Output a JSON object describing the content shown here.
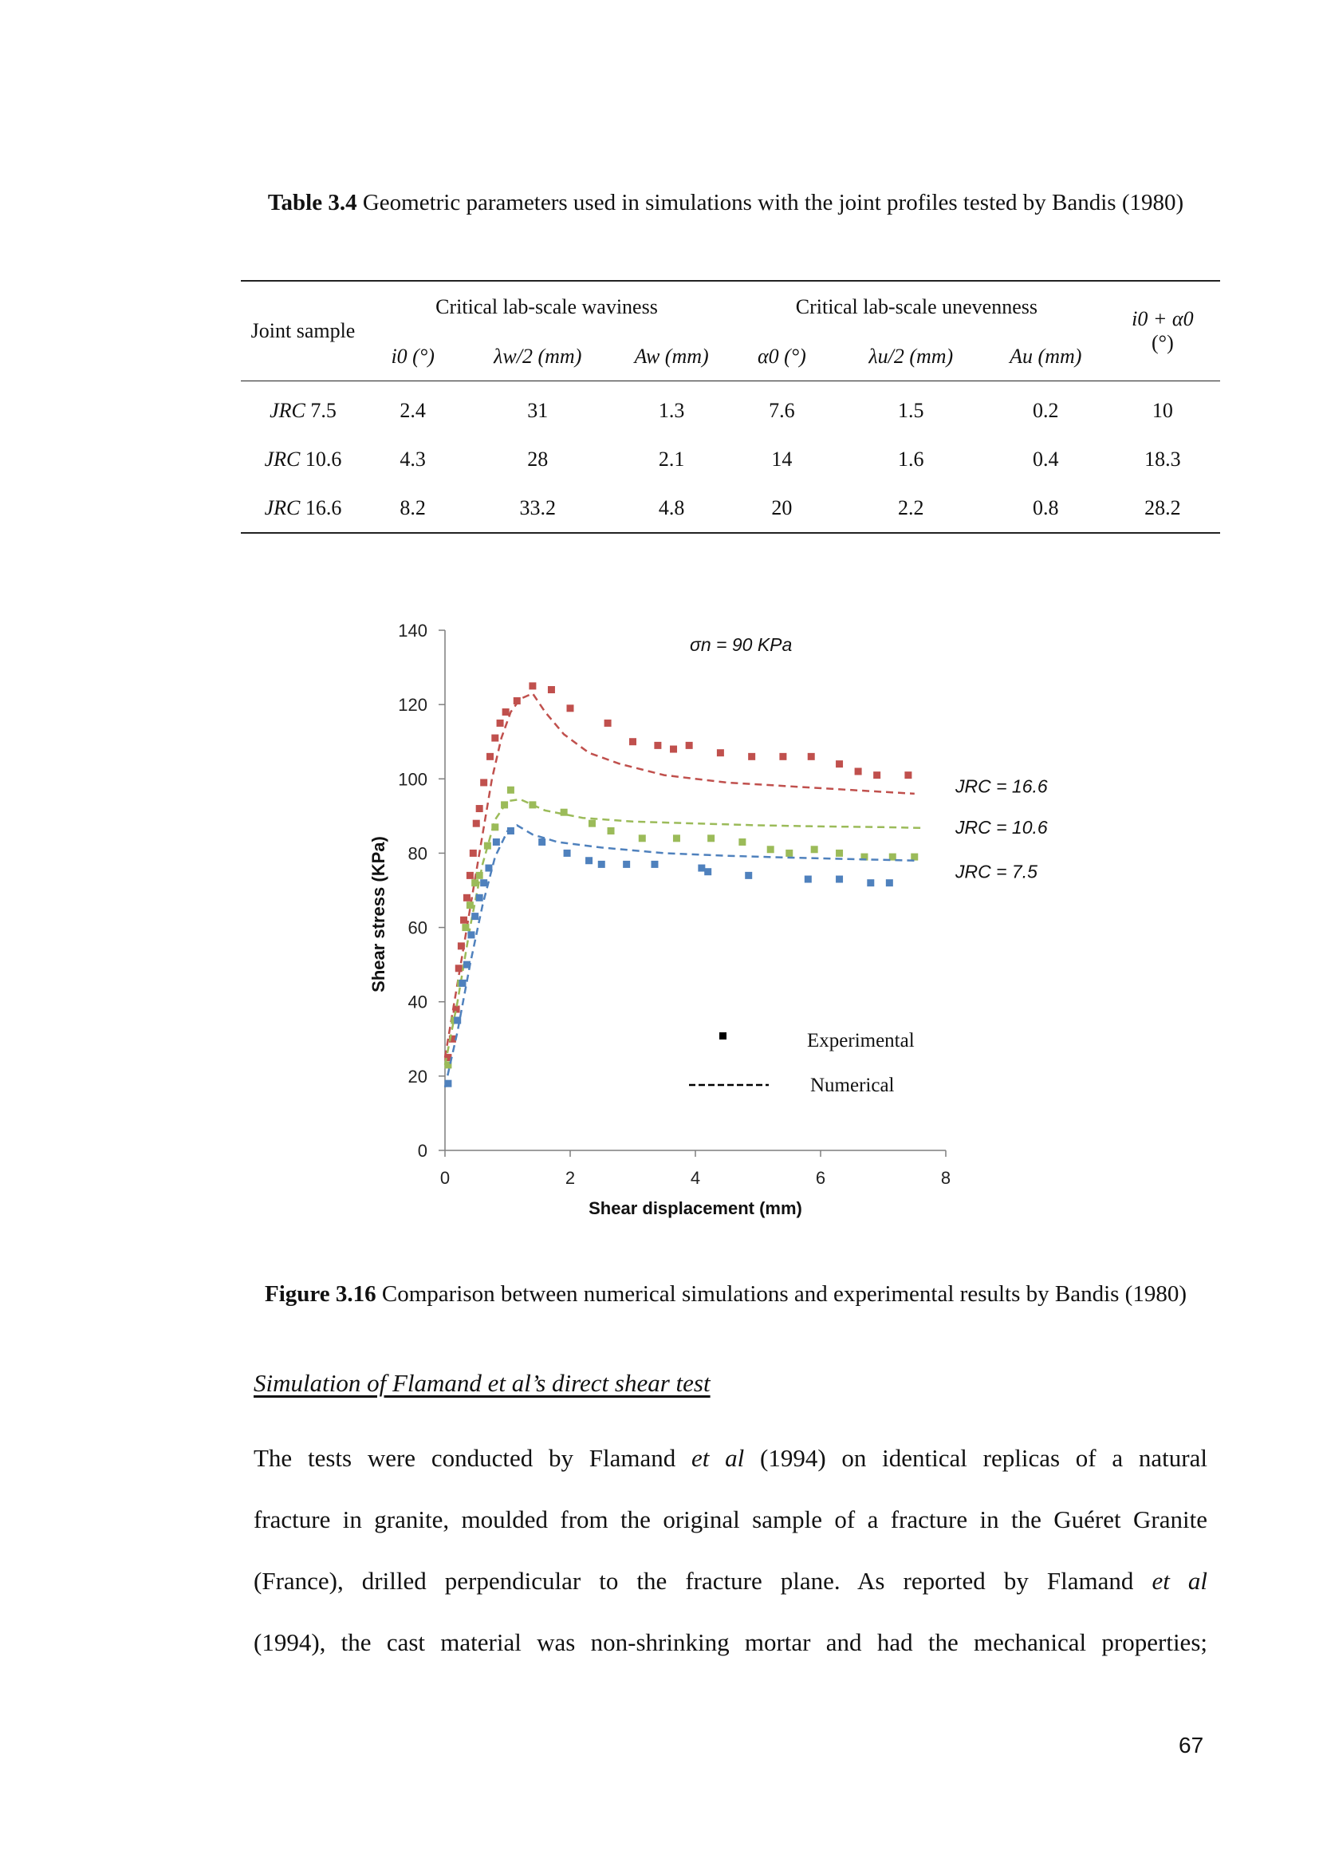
{
  "table": {
    "caption_label": "Table 3.4",
    "caption_text": "Geometric parameters used in simulations with the joint profiles tested by Bandis (1980)",
    "header_joint": "Joint sample",
    "header_waviness": "Critical lab-scale waviness",
    "header_unevenness": "Critical lab-scale unevenness",
    "header_sum_top": "i0 + α0",
    "header_sum_unit": "(°)",
    "sub_i0": "i0 (°)",
    "sub_lw": "λw/2 (mm)",
    "sub_aw": "Aw (mm)",
    "sub_a0": "α0 (°)",
    "sub_lu": "λu/2 (mm)",
    "sub_au": "Au (mm)",
    "rows": [
      {
        "jrc_label": "JRC",
        "jrc_value": "7.5",
        "i0": "2.4",
        "lw": "31",
        "aw": "1.3",
        "a0": "7.6",
        "lu": "1.5",
        "au": "0.2",
        "sum": "10"
      },
      {
        "jrc_label": "JRC",
        "jrc_value": "10.6",
        "i0": "4.3",
        "lw": "28",
        "aw": "2.1",
        "a0": "14",
        "lu": "1.6",
        "au": "0.4",
        "sum": "18.3"
      },
      {
        "jrc_label": "JRC",
        "jrc_value": "16.6",
        "i0": "8.2",
        "lw": "33.2",
        "aw": "4.8",
        "a0": "20",
        "lu": "2.2",
        "au": "0.8",
        "sum": "28.2"
      }
    ]
  },
  "chart_data": {
    "type": "scatter",
    "title": "σn = 90 KPa",
    "xlabel": "Shear displacement (mm)",
    "ylabel": "Shear stress (KPa)",
    "xlim": [
      0,
      8
    ],
    "ylim": [
      0,
      140
    ],
    "x_ticks": [
      "0",
      "2",
      "4",
      "6",
      "8"
    ],
    "y_ticks": [
      "0",
      "20",
      "40",
      "60",
      "80",
      "100",
      "120",
      "140"
    ],
    "legend": {
      "experimental": "Experimental",
      "numerical": "Numerical"
    },
    "grid": false,
    "series": [
      {
        "name": "JRC = 16.6",
        "color": "#c0504d",
        "experimental": [
          [
            0.05,
            25
          ],
          [
            0.12,
            30
          ],
          [
            0.18,
            38
          ],
          [
            0.22,
            49
          ],
          [
            0.26,
            55
          ],
          [
            0.3,
            62
          ],
          [
            0.35,
            68
          ],
          [
            0.4,
            74
          ],
          [
            0.45,
            80
          ],
          [
            0.5,
            88
          ],
          [
            0.55,
            92
          ],
          [
            0.62,
            99
          ],
          [
            0.72,
            106
          ],
          [
            0.8,
            111
          ],
          [
            0.88,
            115
          ],
          [
            0.97,
            118
          ],
          [
            1.15,
            121
          ],
          [
            1.4,
            125
          ],
          [
            1.7,
            124
          ],
          [
            2.0,
            119
          ],
          [
            2.6,
            115
          ],
          [
            3.0,
            110
          ],
          [
            3.4,
            109
          ],
          [
            3.65,
            108
          ],
          [
            3.9,
            109
          ],
          [
            4.4,
            107
          ],
          [
            4.9,
            106
          ],
          [
            5.4,
            106
          ],
          [
            5.85,
            106
          ],
          [
            6.3,
            104
          ],
          [
            6.6,
            102
          ],
          [
            6.9,
            101
          ],
          [
            7.4,
            101
          ]
        ],
        "numerical": [
          [
            0,
            25
          ],
          [
            0.15,
            40
          ],
          [
            0.3,
            55
          ],
          [
            0.45,
            70
          ],
          [
            0.6,
            85
          ],
          [
            0.75,
            100
          ],
          [
            0.9,
            111
          ],
          [
            1.05,
            118
          ],
          [
            1.2,
            121.5
          ],
          [
            1.4,
            123
          ],
          [
            1.6,
            118
          ],
          [
            1.9,
            112
          ],
          [
            2.3,
            107
          ],
          [
            2.8,
            104
          ],
          [
            3.5,
            101
          ],
          [
            4.5,
            99
          ],
          [
            5.5,
            98
          ],
          [
            6.5,
            97
          ],
          [
            7.5,
            96
          ]
        ]
      },
      {
        "name": "JRC = 10.6",
        "color": "#9bbb59",
        "experimental": [
          [
            0.05,
            23
          ],
          [
            0.15,
            35
          ],
          [
            0.25,
            45
          ],
          [
            0.33,
            60
          ],
          [
            0.4,
            66
          ],
          [
            0.48,
            72
          ],
          [
            0.55,
            74
          ],
          [
            0.68,
            82
          ],
          [
            0.8,
            87
          ],
          [
            0.95,
            93
          ],
          [
            1.05,
            97
          ],
          [
            1.4,
            93
          ],
          [
            1.9,
            91
          ],
          [
            2.35,
            88
          ],
          [
            2.65,
            86
          ],
          [
            3.15,
            84
          ],
          [
            3.7,
            84
          ],
          [
            4.25,
            84
          ],
          [
            4.75,
            83
          ],
          [
            5.2,
            81
          ],
          [
            5.5,
            80
          ],
          [
            5.9,
            81
          ],
          [
            6.3,
            80
          ],
          [
            6.7,
            79
          ],
          [
            7.15,
            79
          ],
          [
            7.5,
            79
          ]
        ],
        "numerical": [
          [
            0,
            23
          ],
          [
            0.2,
            40
          ],
          [
            0.4,
            60
          ],
          [
            0.6,
            77
          ],
          [
            0.8,
            89
          ],
          [
            1.0,
            94
          ],
          [
            1.2,
            94.5
          ],
          [
            1.6,
            91.5
          ],
          [
            2.2,
            89.5
          ],
          [
            3.0,
            88.5
          ],
          [
            4.0,
            88
          ],
          [
            5.0,
            87.5
          ],
          [
            6.0,
            87.2
          ],
          [
            7.0,
            87
          ],
          [
            7.6,
            86.8
          ]
        ]
      },
      {
        "name": "JRC = 7.5",
        "color": "#4f81bd",
        "experimental": [
          [
            0.05,
            18
          ],
          [
            0.2,
            35
          ],
          [
            0.28,
            45
          ],
          [
            0.35,
            50
          ],
          [
            0.42,
            58
          ],
          [
            0.48,
            63
          ],
          [
            0.55,
            68
          ],
          [
            0.62,
            72
          ],
          [
            0.7,
            76
          ],
          [
            0.82,
            83
          ],
          [
            1.05,
            86
          ],
          [
            1.55,
            83
          ],
          [
            1.95,
            80
          ],
          [
            2.3,
            78
          ],
          [
            2.5,
            77
          ],
          [
            2.9,
            77
          ],
          [
            3.35,
            77
          ],
          [
            4.1,
            76
          ],
          [
            4.2,
            75
          ],
          [
            4.85,
            74
          ],
          [
            5.8,
            73
          ],
          [
            6.3,
            73
          ],
          [
            6.8,
            72
          ],
          [
            7.1,
            72
          ]
        ],
        "numerical": [
          [
            0,
            17
          ],
          [
            0.2,
            32
          ],
          [
            0.4,
            50
          ],
          [
            0.6,
            66
          ],
          [
            0.8,
            79
          ],
          [
            1.0,
            86
          ],
          [
            1.15,
            87.5
          ],
          [
            1.4,
            85
          ],
          [
            1.8,
            83
          ],
          [
            2.5,
            81.5
          ],
          [
            3.5,
            80
          ],
          [
            4.5,
            79.3
          ],
          [
            5.5,
            78.8
          ],
          [
            6.5,
            78.4
          ],
          [
            7.5,
            78
          ]
        ]
      }
    ]
  },
  "figure": {
    "caption_label": "Figure 3.16",
    "caption_text": "Comparison between numerical simulations and experimental results by Bandis (1980)"
  },
  "section": {
    "heading": "Simulation of Flamand et al’s direct shear test"
  },
  "paragraph": {
    "l1_a": "The tests were conducted by Flamand ",
    "l1_b": "et al",
    "l1_c": " (1994) on identical replicas of a natural",
    "l2": "fracture in granite, moulded from the original sample of a fracture in the Guéret Granite",
    "l3_a": "(France), drilled perpendicular to the fracture plane. As reported by Flamand ",
    "l3_b": "et al",
    "l4": "(1994), the cast material was non-shrinking mortar and had the mechanical properties;"
  },
  "page_number": "67"
}
